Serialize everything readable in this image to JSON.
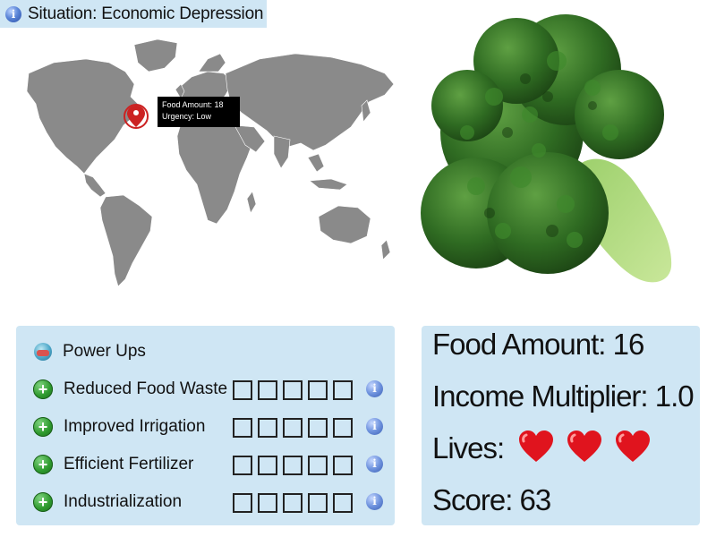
{
  "situation": {
    "label": "Situation: Economic Depression",
    "icon": "info-icon"
  },
  "map": {
    "land_color": "#8a8a8a",
    "marker_color": "#cc2222",
    "tooltip": {
      "food_amount": "Food Amount: 18",
      "urgency": "Urgency: Low"
    }
  },
  "illustration": {
    "subject": "broccoli"
  },
  "powerups": {
    "title": "Power Ups",
    "items": [
      {
        "label": "Reduced Food Waste",
        "level": 0,
        "max_level": 5
      },
      {
        "label": "Improved Irrigation",
        "level": 0,
        "max_level": 5
      },
      {
        "label": "Efficient Fertilizer",
        "level": 0,
        "max_level": 5
      },
      {
        "label": "Industrialization",
        "level": 0,
        "max_level": 5
      }
    ]
  },
  "stats": {
    "food_amount": "Food Amount: 16",
    "income_multiplier": "Income Multiplier: 1.0",
    "lives_label": "Lives:",
    "lives": 3,
    "score": "Score: 63"
  },
  "colors": {
    "panel_bg": "#cfe6f4",
    "heart": "#e0141e"
  }
}
